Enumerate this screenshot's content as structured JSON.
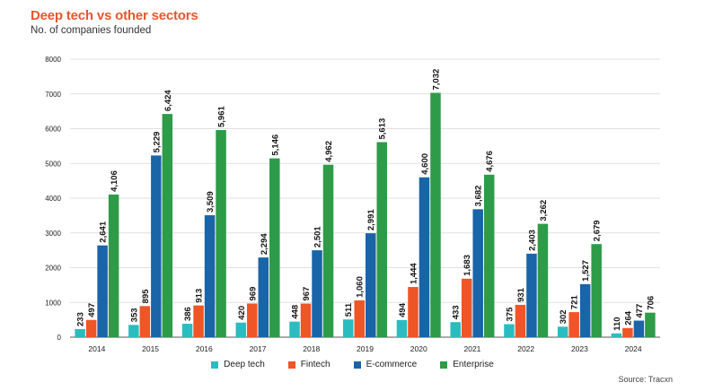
{
  "header": {
    "title": "Deep tech vs other sectors",
    "subtitle": "No. of companies founded"
  },
  "source": "Source: Tracxn",
  "colors": {
    "deep_tech": "#2bbcc0",
    "fintech": "#ef5526",
    "ecommerce": "#1a64a8",
    "enterprise": "#2e9b48",
    "title": "#e4572e"
  },
  "chart_data": {
    "type": "bar",
    "title": "Deep tech vs other sectors",
    "subtitle": "No. of companies founded",
    "categories": [
      "2014",
      "2015",
      "2016",
      "2017",
      "2018",
      "2019",
      "2020",
      "2021",
      "2022",
      "2023",
      "2024"
    ],
    "series": [
      {
        "name": "Deep tech",
        "values": [
          233,
          353,
          386,
          420,
          448,
          511,
          494,
          433,
          375,
          302,
          110
        ],
        "labels": [
          "233",
          "353",
          "386",
          "420",
          "448",
          "511",
          "494",
          "433",
          "375",
          "302",
          "110"
        ]
      },
      {
        "name": "Fintech",
        "values": [
          497,
          895,
          913,
          969,
          967,
          1060,
          1444,
          1683,
          931,
          721,
          264
        ],
        "labels": [
          "497",
          "895",
          "913",
          "969",
          "967",
          "1,060",
          "1,444",
          "1,683",
          "931",
          "721",
          "264"
        ]
      },
      {
        "name": "E-commerce",
        "values": [
          2641,
          5229,
          3509,
          2294,
          2501,
          2991,
          4600,
          3682,
          2403,
          1527,
          477
        ],
        "labels": [
          "2,641",
          "5,229",
          "3,509",
          "2,294",
          "2,501",
          "2,991",
          "4,600",
          "3,682",
          "2,403",
          "1,527",
          "477"
        ]
      },
      {
        "name": "Enterprise",
        "values": [
          4106,
          6424,
          5961,
          5146,
          4962,
          5613,
          7032,
          4676,
          3262,
          2679,
          706
        ],
        "labels": [
          "4,106",
          "6,424",
          "5,961",
          "5,146",
          "4,962",
          "5,613",
          "7,032",
          "4,676",
          "3,262",
          "2,679",
          "706"
        ]
      }
    ],
    "ylim": [
      0,
      8000
    ],
    "yticks": [
      "0",
      "1000",
      "2000",
      "3000",
      "4000",
      "5000",
      "6000",
      "7000",
      "8000"
    ],
    "xlabel": "",
    "ylabel": "",
    "grid": true,
    "legend": "bottom-center"
  }
}
